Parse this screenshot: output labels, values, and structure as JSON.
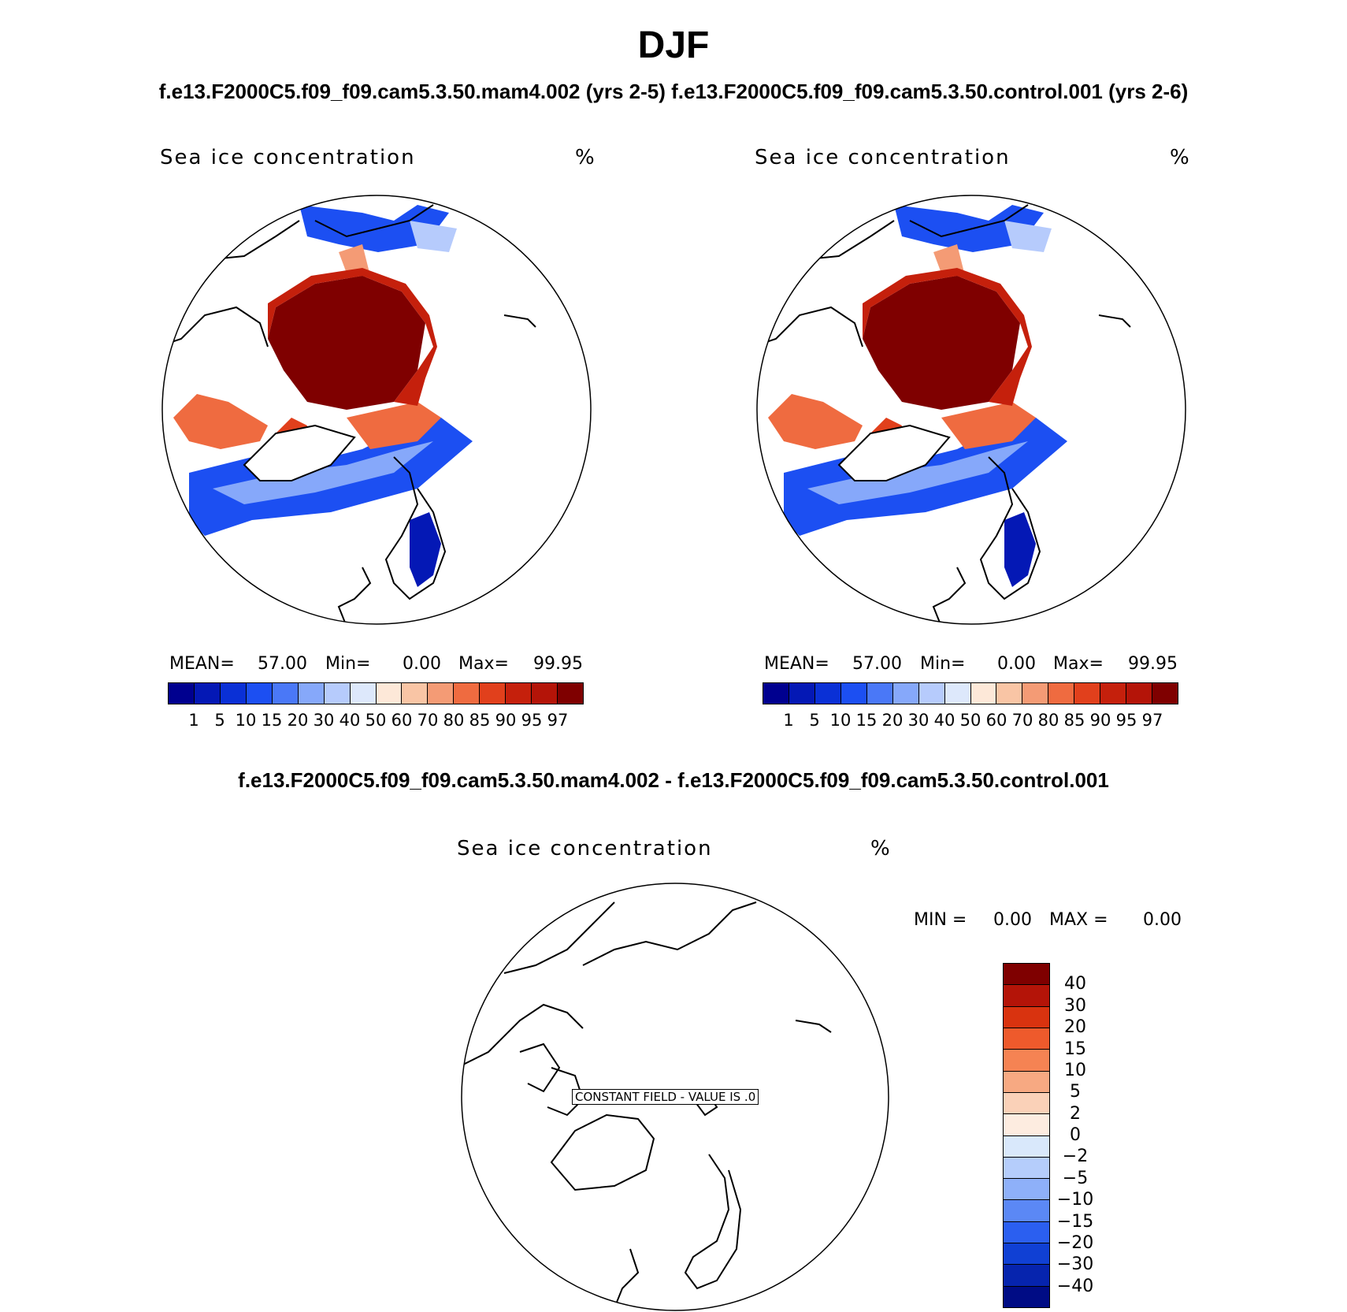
{
  "title": "DJF",
  "case_header": "f.e13.F2000C5.f09_f09.cam5.3.50.mam4.002 (yrs 2-5) f.e13.F2000C5.f09_f09.cam5.3.50.control.001 (yrs 2-6)",
  "diff_header": "f.e13.F2000C5.f09_f09.cam5.3.50.mam4.002 - f.e13.F2000C5.f09_f09.cam5.3.50.control.001",
  "panels": [
    {
      "title": "Sea ice concentration",
      "units": "%",
      "stats": {
        "mean_label": "MEAN=",
        "mean": "57.00",
        "min_label": "Min=",
        "min": "0.00",
        "max_label": "Max=",
        "max": "99.95"
      }
    },
    {
      "title": "Sea ice concentration",
      "units": "%",
      "stats": {
        "mean_label": "MEAN=",
        "mean": "57.00",
        "min_label": "Min=",
        "min": "0.00",
        "max_label": "Max=",
        "max": "99.95"
      }
    }
  ],
  "colorbar": {
    "labels": [
      "1",
      "5",
      "10",
      "15",
      "20",
      "30",
      "40",
      "50",
      "60",
      "70",
      "80",
      "85",
      "90",
      "95",
      "97"
    ],
    "colors": [
      "#00008f",
      "#0418b5",
      "#0a30d6",
      "#1c4ff2",
      "#4a78f7",
      "#86a8fa",
      "#b6cbfc",
      "#dde8fb",
      "#fde8d8",
      "#f9c5a5",
      "#f49b75",
      "#ef6b40",
      "#e1401c",
      "#c5200c",
      "#b41408",
      "#7f0000"
    ]
  },
  "diff_panel": {
    "title": "Sea ice concentration",
    "units": "%",
    "min_label": "MIN =",
    "min": "0.00",
    "max_label": "MAX =",
    "max": "0.00",
    "constant_field": "CONSTANT FIELD - VALUE IS .0",
    "colorbar_labels": [
      "40",
      "30",
      "20",
      "15",
      "10",
      "5",
      "2",
      "0",
      "−2",
      "−5",
      "−10",
      "−15",
      "−20",
      "−30",
      "−40"
    ],
    "colorbar_colors": [
      "#7f0000",
      "#b41408",
      "#d9330f",
      "#ee5a2c",
      "#f58353",
      "#f7a982",
      "#fad1b8",
      "#fdece0",
      "#d9e8fb",
      "#b5cdfb",
      "#8eb0f9",
      "#5b88f5",
      "#2b5ff0",
      "#1040d4",
      "#0624ae",
      "#000c85"
    ]
  }
}
